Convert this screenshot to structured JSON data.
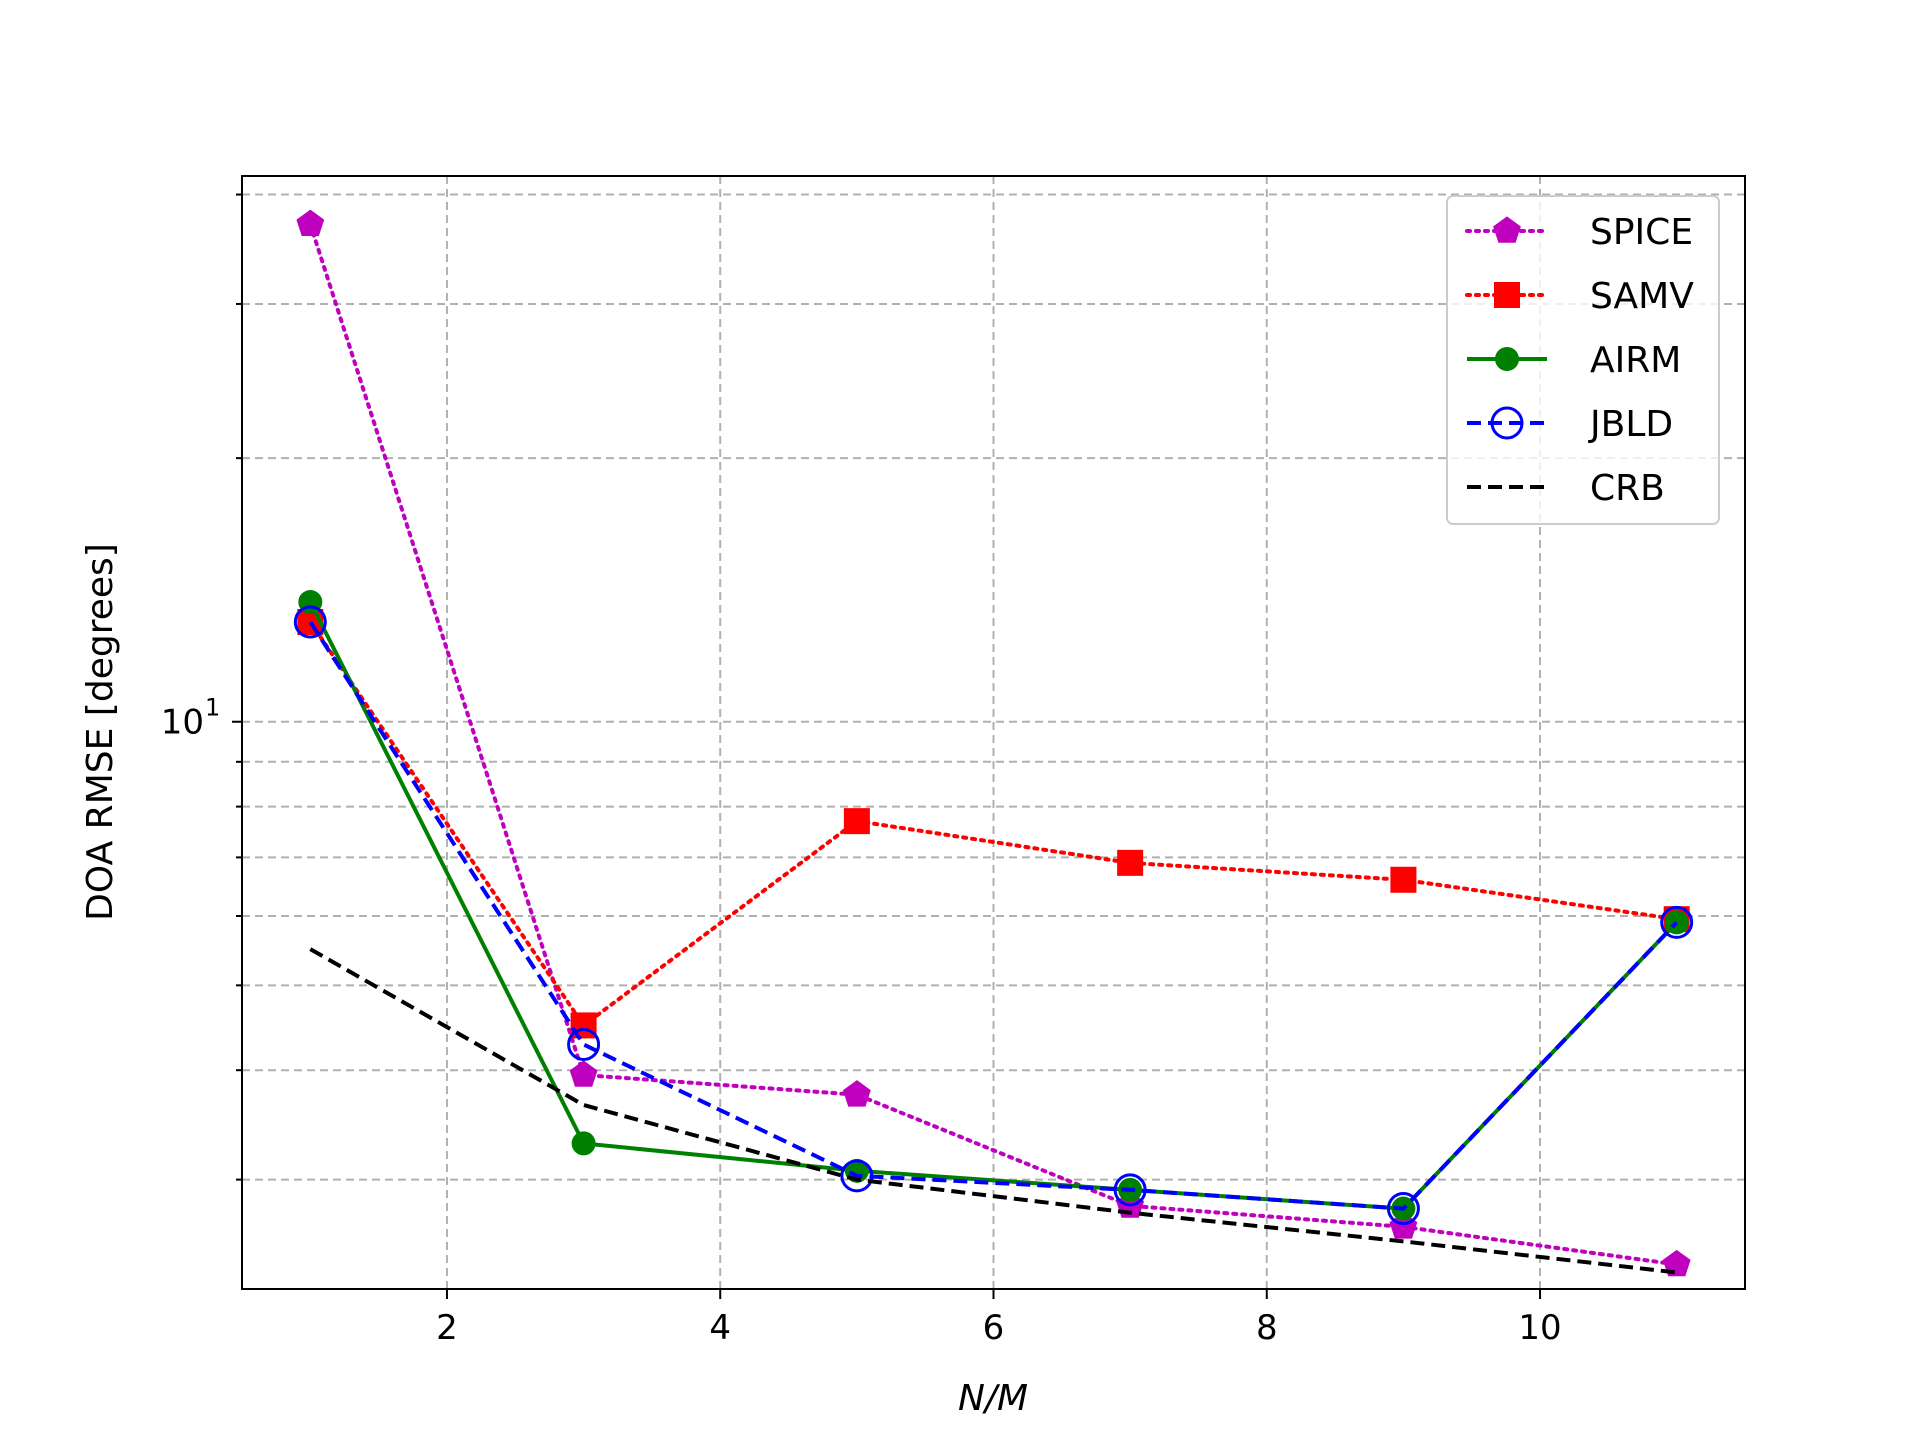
{
  "chart_data": {
    "type": "line",
    "title": "",
    "xlabel": "N/M",
    "ylabel": "DOA RMSE [degrees]",
    "xlim": [
      0.5,
      11.5
    ],
    "ylim": [
      2.25,
      42
    ],
    "yscale": "log",
    "grid": true,
    "grid_style": "dashed",
    "legend_position": "upper right",
    "x_ticks": [
      2,
      4,
      6,
      8,
      10
    ],
    "x_tick_labels": [
      "2",
      "4",
      "6",
      "8",
      "10"
    ],
    "y_tick_label_main": "10",
    "y_tick_label_exp": "1",
    "y_major_tick": 10,
    "y_minor_ticks": [
      3,
      4,
      5,
      6,
      7,
      8,
      9,
      20,
      30,
      40
    ],
    "x": [
      1,
      3,
      5,
      7,
      9,
      11
    ],
    "series": [
      {
        "name": "SPICE",
        "values": [
          37.0,
          3.95,
          3.75,
          2.8,
          2.65,
          2.4
        ],
        "color": "#bf00bf",
        "linestyle": "dotted",
        "marker": "pentagon"
      },
      {
        "name": "SAMV",
        "values": [
          13.0,
          4.5,
          7.7,
          6.9,
          6.6,
          5.95
        ],
        "color": "#ff0000",
        "linestyle": "dotted",
        "marker": "square"
      },
      {
        "name": "AIRM",
        "values": [
          13.7,
          3.3,
          3.07,
          2.92,
          2.78,
          5.9
        ],
        "color": "#008000",
        "linestyle": "solid",
        "marker": "circle"
      },
      {
        "name": "JBLD",
        "values": [
          13.0,
          4.28,
          3.03,
          2.92,
          2.78,
          5.9
        ],
        "color": "#0000ff",
        "linestyle": "dashed",
        "marker": "circle-open"
      },
      {
        "name": "CRB",
        "values": [
          5.5,
          3.65,
          3.0,
          2.75,
          2.55,
          2.35
        ],
        "color": "#000000",
        "linestyle": "dashed",
        "marker": "none"
      }
    ]
  }
}
